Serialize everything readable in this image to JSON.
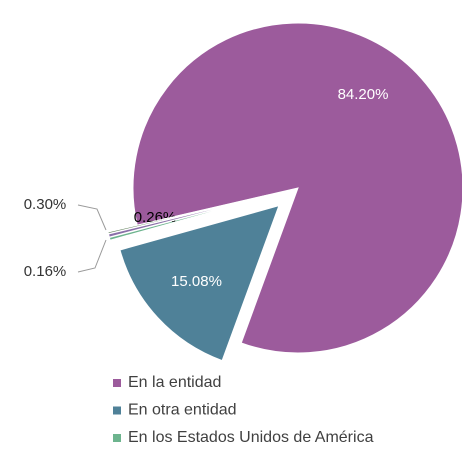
{
  "chart_data": {
    "type": "pie",
    "categories": [
      "En la entidad",
      "En otra entidad",
      "En los Estados Unidos de América",
      null,
      null
    ],
    "values": [
      84.2,
      15.08,
      0.26,
      0.3,
      0.16
    ],
    "value_labels": [
      "84.20%",
      "15.08%",
      "0.26%",
      "0.30%",
      "0.16%"
    ],
    "colors": [
      "#9c5b9c",
      "#4f8198",
      "#6db48e",
      "#8a6fa8",
      "#5f7f5a"
    ],
    "legend": "bottom"
  }
}
